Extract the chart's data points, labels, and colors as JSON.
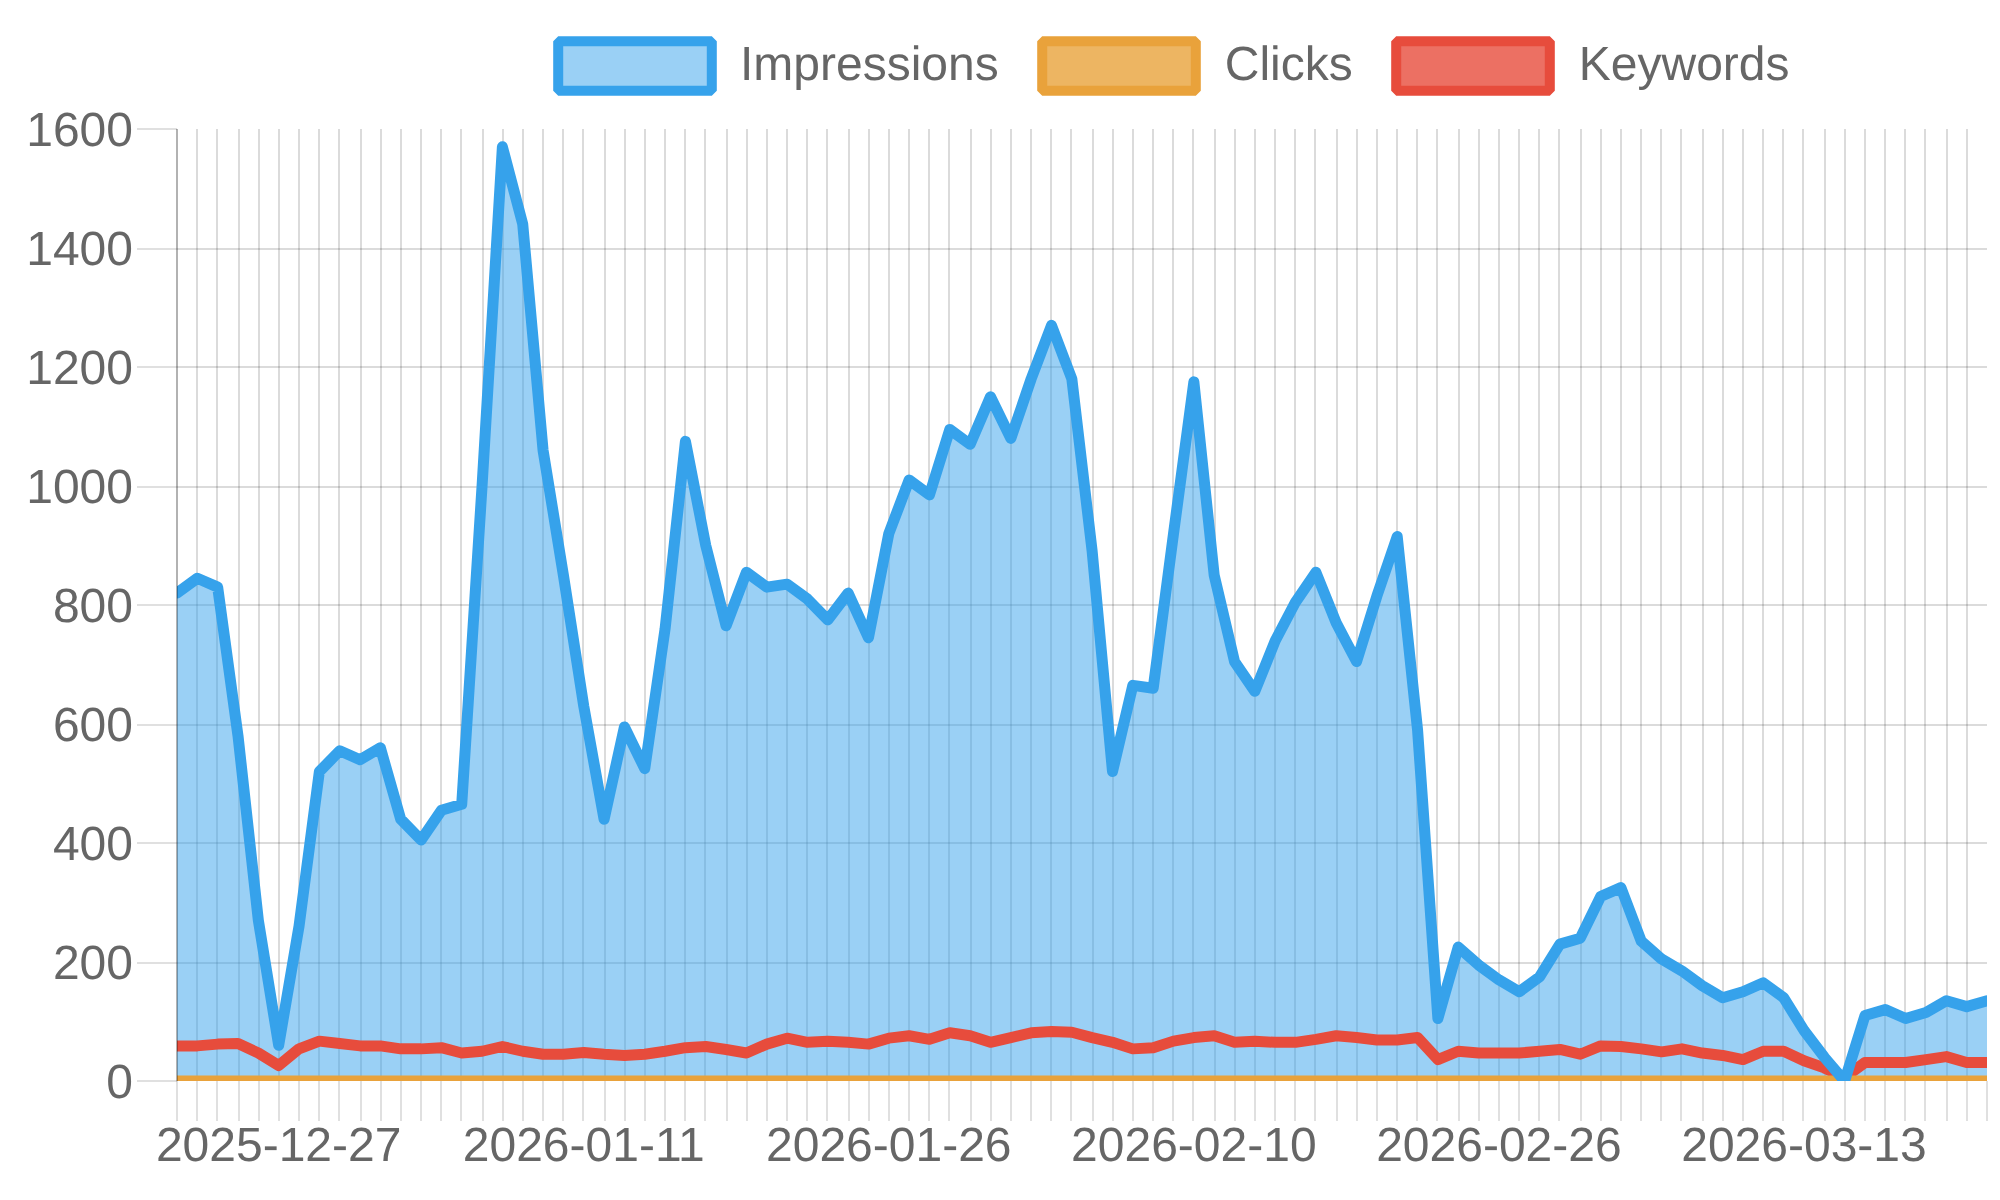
{
  "chart_data": {
    "type": "line",
    "categories": [
      null,
      null,
      null,
      null,
      null,
      "2025-12-27",
      null,
      null,
      null,
      null,
      null,
      null,
      null,
      null,
      null,
      null,
      null,
      null,
      null,
      null,
      "2026-01-11",
      null,
      null,
      null,
      null,
      null,
      null,
      null,
      null,
      null,
      null,
      null,
      null,
      null,
      null,
      "2026-01-26",
      null,
      null,
      null,
      null,
      null,
      null,
      null,
      null,
      null,
      null,
      null,
      null,
      null,
      null,
      "2026-02-10",
      null,
      null,
      null,
      null,
      null,
      null,
      null,
      null,
      null,
      null,
      null,
      null,
      null,
      null,
      "2026-02-26",
      null,
      null,
      null,
      null,
      null,
      null,
      null,
      null,
      null,
      null,
      null,
      null,
      null,
      null,
      "2026-03-13",
      null,
      null,
      null,
      null,
      null,
      null,
      null,
      null,
      null
    ],
    "series": [
      {
        "name": "Impressions",
        "type": "area",
        "color": "#36a2eb",
        "values": [
          820,
          845,
          830,
          580,
          270,
          60,
          260,
          520,
          555,
          540,
          560,
          440,
          405,
          455,
          465,
          1000,
          1570,
          1440,
          1060,
          850,
          630,
          440,
          595,
          525,
          760,
          1075,
          900,
          765,
          855,
          830,
          835,
          810,
          775,
          820,
          745,
          920,
          1010,
          985,
          1095,
          1070,
          1150,
          1080,
          1180,
          1270,
          1180,
          890,
          520,
          665,
          660,
          920,
          1175,
          850,
          705,
          655,
          740,
          805,
          855,
          770,
          705,
          815,
          915,
          590,
          105,
          225,
          195,
          170,
          150,
          175,
          230,
          240,
          310,
          325,
          235,
          205,
          185,
          160,
          140,
          150,
          165,
          140,
          85,
          40,
          0,
          110,
          120,
          105,
          115,
          135,
          125,
          135
        ]
      },
      {
        "name": "Clicks",
        "color": "#e9a23b",
        "values": [
          0,
          0,
          0,
          0,
          0,
          0,
          0,
          0,
          0,
          0,
          0,
          0,
          0,
          0,
          0,
          0,
          0,
          0,
          0,
          0,
          0,
          0,
          0,
          0,
          0,
          0,
          0,
          0,
          0,
          0,
          0,
          0,
          0,
          0,
          0,
          0,
          0,
          0,
          0,
          0,
          0,
          0,
          0,
          0,
          0,
          0,
          0,
          0,
          0,
          0,
          0,
          0,
          0,
          0,
          0,
          0,
          0,
          0,
          0,
          0,
          0,
          0,
          0,
          0,
          0,
          0,
          0,
          0,
          0,
          0,
          0,
          0,
          0,
          0,
          0,
          0,
          0,
          0,
          0,
          0,
          0,
          0,
          0,
          0,
          0,
          0,
          0,
          0,
          0,
          0
        ]
      },
      {
        "name": "Keywords",
        "color": "#e74c3c",
        "values": [
          59,
          59,
          62,
          63,
          47,
          26,
          54,
          67,
          63,
          59,
          59,
          54,
          54,
          56,
          47,
          50,
          58,
          50,
          45,
          45,
          48,
          45,
          43,
          45,
          50,
          56,
          58,
          53,
          47,
          62,
          72,
          65,
          67,
          65,
          62,
          72,
          76,
          70,
          81,
          76,
          65,
          73,
          81,
          83,
          82,
          73,
          65,
          54,
          56,
          67,
          73,
          76,
          65,
          67,
          65,
          65,
          70,
          76,
          73,
          69,
          69,
          73,
          36,
          50,
          47,
          47,
          47,
          50,
          53,
          45,
          59,
          58,
          54,
          49,
          54,
          47,
          43,
          36,
          50,
          50,
          34,
          22,
          6,
          31,
          31,
          31,
          36,
          41,
          31,
          31
        ]
      }
    ],
    "ylim": [
      0,
      1600
    ],
    "yticks": [
      0,
      200,
      400,
      600,
      800,
      1000,
      1200,
      1400,
      1600
    ],
    "grid": true,
    "legend": "top"
  }
}
